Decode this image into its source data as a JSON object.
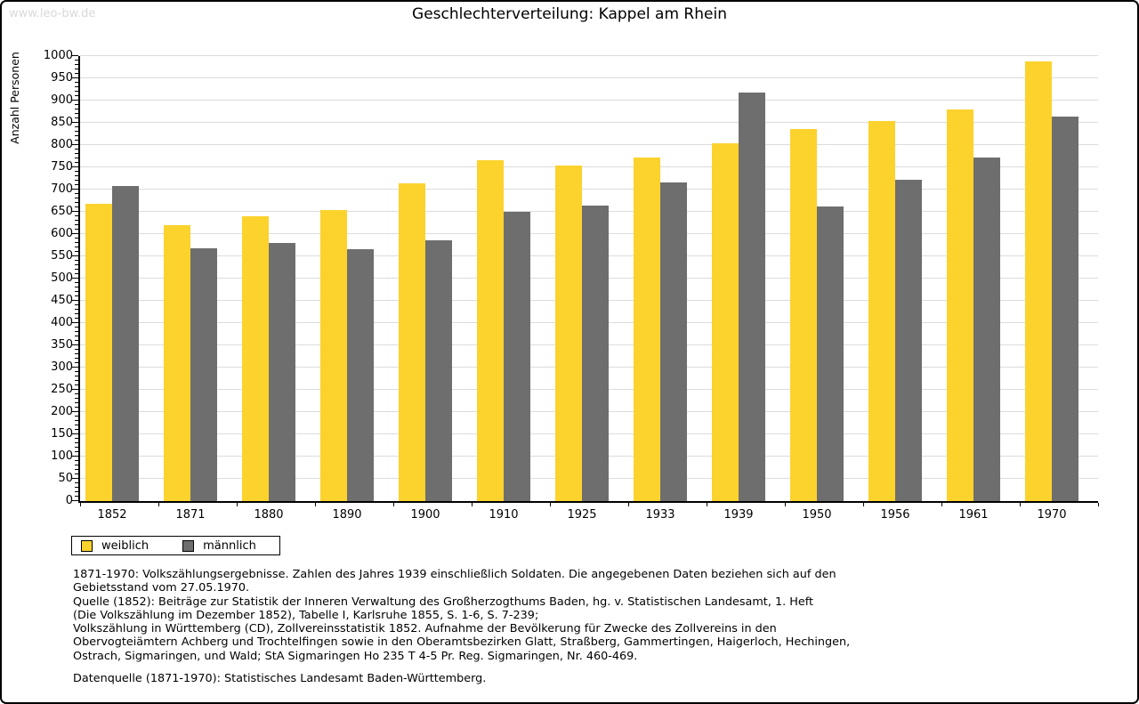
{
  "watermark": "www.leo-bw.de",
  "title": "Geschlechterverteilung: Kappel am Rhein",
  "chart_data": {
    "type": "bar",
    "title": "Geschlechterverteilung: Kappel am Rhein",
    "xlabel": "",
    "ylabel": "Anzahl Personen",
    "ylim": [
      0,
      1000
    ],
    "ytick_step": 50,
    "minor_tick_step": 10,
    "grid": true,
    "legend_position": "bottom-left",
    "categories": [
      "1852",
      "1871",
      "1880",
      "1890",
      "1900",
      "1910",
      "1925",
      "1933",
      "1939",
      "1950",
      "1956",
      "1961",
      "1970"
    ],
    "series": [
      {
        "name": "weiblich",
        "color": "#FCD22D",
        "values": [
          668,
          620,
          640,
          654,
          714,
          766,
          754,
          772,
          804,
          836,
          854,
          880,
          988
        ]
      },
      {
        "name": "männlich",
        "color": "#6E6E6E",
        "values": [
          708,
          568,
          580,
          566,
          586,
          650,
          664,
          716,
          918,
          662,
          722,
          772,
          864
        ]
      }
    ]
  },
  "legend": {
    "items": [
      {
        "label": "weiblich",
        "color": "#FCD22D"
      },
      {
        "label": "männlich",
        "color": "#6E6E6E"
      }
    ]
  },
  "footer": {
    "lines": [
      "1871-1970: Volkszählungsergebnisse. Zahlen des Jahres 1939 einschließlich Soldaten. Die angegebenen Daten beziehen sich auf den",
      "Gebietsstand vom 27.05.1970.",
      "Quelle (1852): Beiträge zur Statistik der Inneren Verwaltung des Großherzogthums Baden, hg. v. Statistischen Landesamt, 1. Heft",
      "(Die Volkszählung im Dezember 1852), Tabelle I, Karlsruhe 1855, S. 1-6, S. 7-239;",
      "Volkszählung in Württemberg (CD), Zollvereinsstatistik 1852. Aufnahme der Bevölkerung für Zwecke des Zollvereins in den",
      "Obervogteiämtern Achberg und Trochtelfingen sowie in den Oberamtsbezirken Glatt, Straßberg, Gammertingen, Haigerloch, Hechingen,",
      "Ostrach, Sigmaringen, und Wald; StA Sigmaringen Ho 235 T 4-5 Pr. Reg. Sigmaringen, Nr. 460-469."
    ],
    "datasource": "Datenquelle (1871-1970): Statistisches Landesamt Baden-Württemberg."
  },
  "colors": {
    "female": "#FCD22D",
    "male": "#6E6E6E",
    "gridline": "#DCDCDC",
    "axis": "#000000",
    "watermark": "#D9D9D9"
  }
}
